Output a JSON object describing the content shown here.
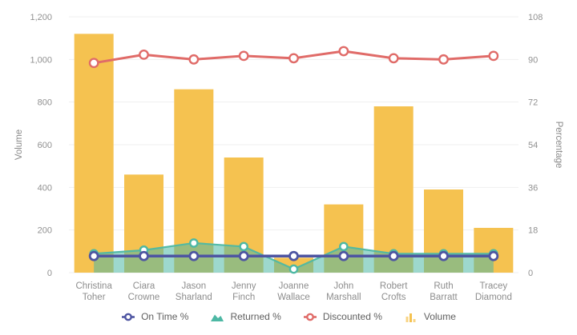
{
  "chart_data": {
    "type": "combination",
    "categories": [
      "Christina Toher",
      "Ciara Crowne",
      "Jason Sharland",
      "Jenny Finch",
      "Joanne Wallace",
      "John Marshall",
      "Robert Crofts",
      "Ruth Barratt",
      "Tracey Diamond"
    ],
    "series": [
      {
        "name": "On Time %",
        "type": "line",
        "axis": "right",
        "color": "#4e55a2",
        "values": [
          7,
          7,
          7,
          7,
          7,
          7,
          7,
          7,
          7
        ]
      },
      {
        "name": "Returned %",
        "type": "area",
        "axis": "right",
        "color": "#4db8a4",
        "values": [
          8,
          9.5,
          12.5,
          11,
          1.5,
          11,
          8,
          8,
          8
        ]
      },
      {
        "name": "Discounted %",
        "type": "line",
        "axis": "right",
        "color": "#e06b68",
        "values": [
          88.5,
          92,
          90,
          91.5,
          90.5,
          93.5,
          90.5,
          90,
          91.5
        ]
      },
      {
        "name": "Volume",
        "type": "bar",
        "axis": "left",
        "color": "#f5c250",
        "values": [
          1120,
          460,
          860,
          540,
          70,
          320,
          780,
          390,
          210
        ]
      }
    ],
    "y_axis_left": {
      "title": "Volume",
      "min": 0,
      "max": 1200,
      "tick_interval": 200,
      "tick_labels": [
        "0",
        "200",
        "400",
        "600",
        "800",
        "1,000",
        "1,200"
      ]
    },
    "y_axis_right": {
      "title": "Percentage",
      "min": 0,
      "max": 108,
      "tick_interval": 18,
      "tick_labels": [
        "0",
        "18",
        "36",
        "54",
        "72",
        "90",
        "108"
      ]
    },
    "grid": {
      "horizontal": true,
      "vertical": false,
      "color": "#efefef"
    },
    "legend_position": "bottom",
    "marker_fill": "#ffffff",
    "area_fill_opacity": 0.55,
    "text_color": "#919191",
    "legend_text_color": "#5f5f5f",
    "background": "#ffffff"
  }
}
